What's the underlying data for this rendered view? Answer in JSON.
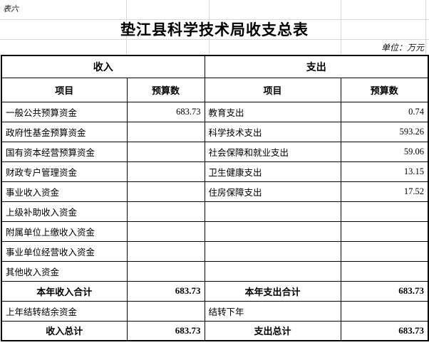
{
  "page": {
    "corner_label": "表六",
    "title": "垫江县科学技术局收支总表",
    "unit_note": "单位：万元"
  },
  "table": {
    "income_header": "收入",
    "expenditure_header": "支出",
    "item_header": "项目",
    "budget_header": "预算数",
    "rows": [
      {
        "income_item": "一般公共预算资金",
        "income_budget": "683.73",
        "expense_item": "教育支出",
        "expense_budget": "0.74",
        "total_row": false
      },
      {
        "income_item": "政府性基金预算资金",
        "income_budget": "",
        "expense_item": "科学技术支出",
        "expense_budget": "593.26",
        "total_row": false
      },
      {
        "income_item": "国有资本经营预算资金",
        "income_budget": "",
        "expense_item": "社会保障和就业支出",
        "expense_budget": "59.06",
        "total_row": false
      },
      {
        "income_item": "财政专户管理资金",
        "income_budget": "",
        "expense_item": "卫生健康支出",
        "expense_budget": "13.15",
        "total_row": false
      },
      {
        "income_item": "事业收入资金",
        "income_budget": "",
        "expense_item": "住房保障支出",
        "expense_budget": "17.52",
        "total_row": false
      },
      {
        "income_item": "上级补助收入资金",
        "income_budget": "",
        "expense_item": "",
        "expense_budget": "",
        "total_row": false
      },
      {
        "income_item": "附属单位上缴收入资金",
        "income_budget": "",
        "expense_item": "",
        "expense_budget": "",
        "total_row": false
      },
      {
        "income_item": "事业单位经营收入资金",
        "income_budget": "",
        "expense_item": "",
        "expense_budget": "",
        "total_row": false
      },
      {
        "income_item": "其他收入资金",
        "income_budget": "",
        "expense_item": "",
        "expense_budget": "",
        "total_row": false
      },
      {
        "income_item": "本年收入合计",
        "income_budget": "683.73",
        "expense_item": "本年支出合计",
        "expense_budget": "683.73",
        "total_row": true
      },
      {
        "income_item": "上年结转结余资金",
        "income_budget": "",
        "expense_item": "结转下年",
        "expense_budget": "",
        "total_row": false
      },
      {
        "income_item": "收入总计",
        "income_budget": "683.73",
        "expense_item": "支出总计",
        "expense_budget": "683.73",
        "total_row": true
      }
    ]
  },
  "colors": {
    "text": "#000000",
    "table_border": "#000000",
    "gridline": "#d8d8d8",
    "background": "#ffffff"
  }
}
